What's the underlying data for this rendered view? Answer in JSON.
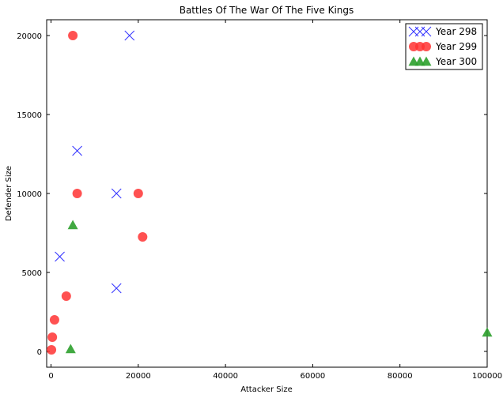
{
  "chart_data": {
    "type": "scatter",
    "title": "Battles Of The War Of The Five Kings",
    "xlabel": "Attacker Size",
    "ylabel": "Defender Size",
    "xlim": [
      -1000,
      100000
    ],
    "ylim": [
      -1000,
      21000
    ],
    "xticks": [
      0,
      20000,
      40000,
      60000,
      80000,
      100000
    ],
    "yticks": [
      0,
      5000,
      10000,
      15000,
      20000
    ],
    "grid": false,
    "legend_position": "top-right",
    "series": [
      {
        "name": "Year 298",
        "marker": "x",
        "color": "#3333ff",
        "points": [
          [
            18000,
            20000
          ],
          [
            6000,
            12700
          ],
          [
            15000,
            10000
          ],
          [
            2000,
            6000
          ],
          [
            15000,
            4000
          ]
        ]
      },
      {
        "name": "Year 299",
        "marker": "circle",
        "color": "#ff3333",
        "points": [
          [
            5000,
            20000
          ],
          [
            6000,
            10000
          ],
          [
            20000,
            10000
          ],
          [
            21000,
            7250
          ],
          [
            3500,
            3500
          ],
          [
            800,
            2000
          ],
          [
            300,
            900
          ],
          [
            100,
            100
          ]
        ]
      },
      {
        "name": "Year 300",
        "marker": "triangle",
        "color": "#2ca02c",
        "points": [
          [
            5000,
            8000
          ],
          [
            4500,
            150
          ],
          [
            100000,
            1200
          ]
        ]
      }
    ]
  }
}
